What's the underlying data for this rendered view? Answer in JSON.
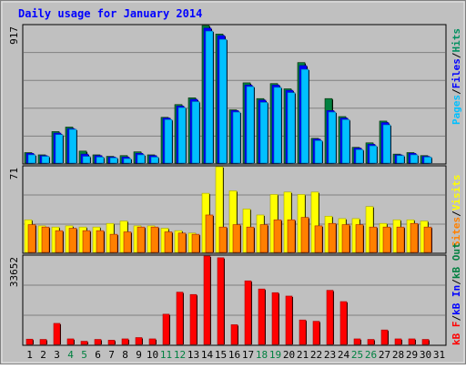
{
  "chart_data": {
    "type": "bar",
    "title": "Daily usage for January 2014",
    "days": [
      "1",
      "2",
      "3",
      "4",
      "5",
      "6",
      "7",
      "8",
      "9",
      "10",
      "11",
      "12",
      "13",
      "14",
      "15",
      "16",
      "17",
      "18",
      "19",
      "20",
      "21",
      "22",
      "23",
      "24",
      "25",
      "26",
      "27",
      "28",
      "29",
      "30",
      "31"
    ],
    "weekend_days": [
      "4",
      "5",
      "11",
      "12",
      "18",
      "19",
      "25",
      "26"
    ],
    "panels": [
      {
        "name": "hits-files-pages",
        "max_label": "917",
        "max": 917,
        "legend": [
          {
            "text": "Pages",
            "color": "#00c0ff"
          },
          {
            "text": "Files",
            "color": "#0000ff"
          },
          {
            "text": "Hits",
            "color": "#009060"
          }
        ],
        "series": [
          {
            "name": "Hits",
            "color": "#008040",
            "values": [
              70,
              55,
              210,
              240,
              80,
              55,
              45,
              50,
              75,
              55,
              305,
              390,
              435,
              917,
              860,
              355,
              535,
              430,
              530,
              495,
              670,
              165,
              430,
              310,
              105,
              135,
              280,
              60,
              70,
              50,
              0
            ]
          },
          {
            "name": "Files",
            "color": "#0000ff",
            "values": [
              65,
              50,
              200,
              230,
              60,
              50,
              40,
              40,
              65,
              50,
              300,
              380,
              425,
              900,
              850,
              350,
              520,
              420,
              520,
              485,
              650,
              160,
              350,
              300,
              100,
              125,
              270,
              55,
              65,
              45,
              0
            ]
          },
          {
            "name": "Pages",
            "color": "#00c0ff",
            "values": [
              55,
              45,
              190,
              225,
              45,
              40,
              35,
              30,
              55,
              40,
              290,
              370,
              410,
              880,
              825,
              340,
              510,
              405,
              505,
              470,
              625,
              150,
              340,
              290,
              90,
              115,
              255,
              50,
              55,
              40,
              0
            ]
          }
        ]
      },
      {
        "name": "visits-sites",
        "max_label": "71",
        "max": 71,
        "legend": [
          {
            "text": "Sites",
            "color": "#ff8000"
          },
          {
            "text": "Visits",
            "color": "#ffff00"
          }
        ],
        "series": [
          {
            "name": "Visits",
            "color": "#ffff00",
            "values": [
              27,
              22,
              21,
              22,
              21,
              21,
              24,
              26,
              22,
              22,
              20,
              18,
              16,
              49,
              71,
              51,
              36,
              31,
              48,
              50,
              48,
              50,
              30,
              28,
              28,
              38,
              24,
              27,
              27,
              26,
              0
            ]
          },
          {
            "name": "Sites",
            "color": "#ff8000",
            "values": [
              23,
              21,
              18,
              20,
              18,
              18,
              15,
              17,
              21,
              21,
              17,
              16,
              15,
              31,
              21,
              23,
              21,
              23,
              27,
              27,
              29,
              22,
              24,
              23,
              23,
              21,
              21,
              21,
              24,
              21,
              0
            ]
          }
        ]
      },
      {
        "name": "kbytes",
        "max_label": "33652",
        "max": 33652,
        "legend": [
          {
            "text": "kB F",
            "color": "#ff0000"
          },
          {
            "text": "kB In",
            "color": "#0000ff"
          },
          {
            "text": "kB Out",
            "color": "#008040"
          }
        ],
        "series": [
          {
            "name": "kB F",
            "color": "#ff0000",
            "values": [
              2000,
              1900,
              8000,
              2100,
              1200,
              1900,
              1600,
              2100,
              2600,
              2100,
              11500,
              19900,
              19000,
              33652,
              33000,
              7500,
              24200,
              21100,
              19700,
              18400,
              9300,
              8800,
              20600,
              16300,
              2100,
              1900,
              5500,
              2100,
              2100,
              1900,
              0
            ]
          }
        ]
      }
    ]
  },
  "colors": {
    "background": "#c0c0c0",
    "frame": "#ffffff",
    "title": "#0000ff",
    "weekday_label": "#000000",
    "weekend_label": "#008040",
    "grid": "#808080"
  }
}
